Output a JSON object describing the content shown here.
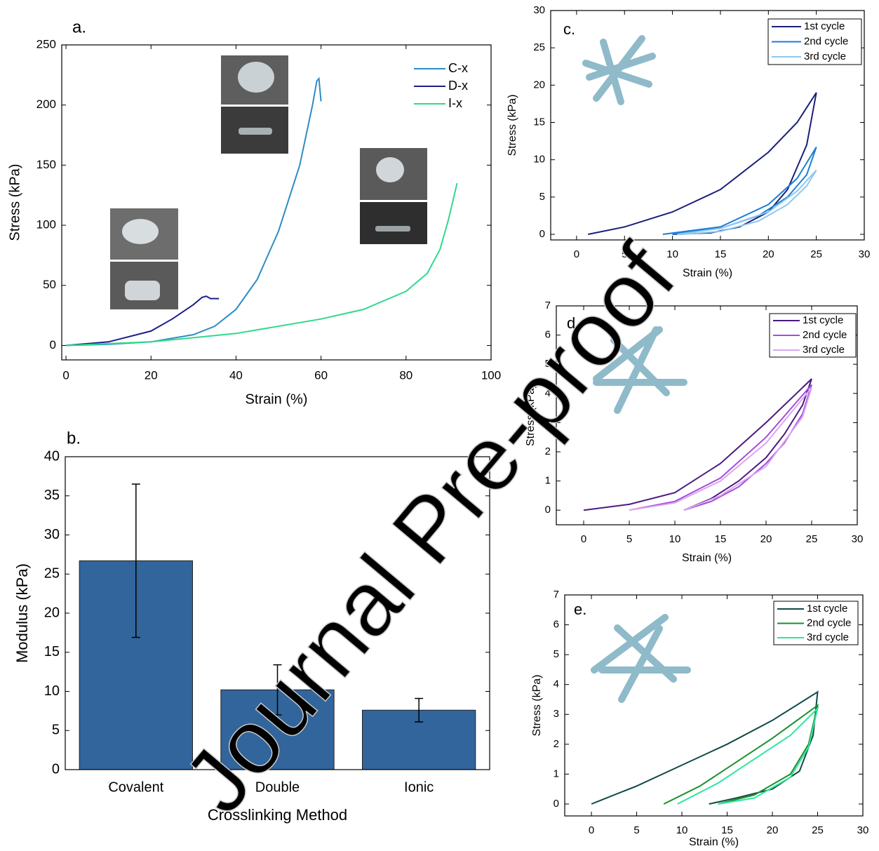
{
  "watermark": "Journal Pre-proof",
  "chart_data": [
    {
      "type": "line",
      "panel_label": "a.",
      "x_label": "Strain (%)",
      "y_label": "Stress (kPa)",
      "xlim": [
        -1,
        100
      ],
      "ylim": [
        -12,
        250
      ],
      "xticks": [
        0,
        20,
        40,
        60,
        80,
        100
      ],
      "yticks": [
        0,
        50,
        100,
        150,
        200,
        250
      ],
      "legend": "upper right",
      "legend_box": false,
      "series": [
        {
          "name": "C-x",
          "color": "#2b8cc4",
          "x": [
            0,
            10,
            20,
            30,
            35,
            40,
            45,
            50,
            55,
            58,
            59,
            59.5,
            60
          ],
          "values": [
            0,
            1,
            3,
            9,
            16,
            30,
            55,
            95,
            150,
            200,
            220,
            222,
            203
          ]
        },
        {
          "name": "D-x",
          "color": "#1c1f8c",
          "x": [
            0,
            10,
            20,
            25,
            30,
            32,
            33,
            34,
            36
          ],
          "values": [
            0,
            3,
            12,
            22,
            34,
            40,
            41,
            39,
            39
          ]
        },
        {
          "name": "I-x",
          "color": "#2fd98c",
          "x": [
            0,
            20,
            40,
            60,
            70,
            80,
            85,
            88,
            90,
            91,
            92
          ],
          "values": [
            0,
            3,
            10,
            22,
            30,
            45,
            60,
            80,
            105,
            120,
            135
          ]
        }
      ]
    },
    {
      "type": "bar",
      "panel_label": "b.",
      "x_label": "Crosslinking Method",
      "y_label": "Modulus (kPa)",
      "categories": [
        "Covalent",
        "Double",
        "Ionic"
      ],
      "values": [
        26.7,
        10.2,
        7.6
      ],
      "errors": [
        9.8,
        3.2,
        1.5
      ],
      "color": "#31659b",
      "ylim": [
        0,
        40
      ],
      "yticks": [
        0,
        5,
        10,
        15,
        20,
        25,
        30,
        35,
        40
      ]
    },
    {
      "type": "line",
      "panel_label": "c.",
      "x_label": "Strain (%)",
      "y_label": "Stress (kPa)",
      "xlim": [
        -2.7,
        30
      ],
      "ylim": [
        -0.75,
        30
      ],
      "xticks": [
        0,
        5,
        10,
        15,
        20,
        25,
        30
      ],
      "yticks": [
        0,
        5,
        10,
        15,
        20,
        25,
        30
      ],
      "legend": "upper right",
      "legend_box": true,
      "series": [
        {
          "name": "1st cycle",
          "color": "#1a1f7a",
          "x": [
            1.2,
            5,
            10,
            15,
            20,
            23,
            25,
            24,
            22,
            20,
            17,
            14,
            10
          ],
          "values": [
            0,
            1,
            3,
            6,
            11,
            15,
            19,
            12,
            6,
            3,
            1,
            0.2,
            0
          ]
        },
        {
          "name": "2nd cycle",
          "color": "#1a7fd4",
          "x": [
            9,
            15,
            20,
            23,
            25,
            24,
            22,
            19,
            15,
            10
          ],
          "values": [
            0,
            1,
            4,
            7.5,
            11.7,
            8,
            5,
            2.5,
            0.8,
            0
          ]
        },
        {
          "name": "3rd cycle",
          "color": "#8ec8ef",
          "x": [
            10.5,
            15,
            20,
            23,
            25,
            24,
            22,
            19,
            15,
            11
          ],
          "values": [
            0,
            0.8,
            3,
            5.8,
            8.6,
            6.5,
            4,
            1.8,
            0.4,
            0
          ]
        }
      ]
    },
    {
      "type": "line",
      "panel_label": "d",
      "x_label": "Strain (%)",
      "y_label": "Stress (kPa)",
      "xlim": [
        -3,
        30
      ],
      "ylim": [
        -0.5,
        7
      ],
      "xticks": [
        0,
        5,
        10,
        15,
        20,
        25,
        30
      ],
      "yticks": [
        0,
        1,
        2,
        3,
        4,
        5,
        6,
        7
      ],
      "legend": "upper right",
      "legend_box": true,
      "series": [
        {
          "name": "1st cycle",
          "color": "#4b1a80",
          "x": [
            0,
            5,
            10,
            15,
            20,
            25,
            24,
            22,
            20,
            17,
            14,
            11
          ],
          "values": [
            0,
            0.2,
            0.6,
            1.6,
            3,
            4.5,
            3.6,
            2.6,
            1.8,
            1,
            0.4,
            0
          ]
        },
        {
          "name": "2nd cycle",
          "color": "#a64ddb",
          "x": [
            5,
            10,
            15,
            20,
            25,
            24,
            22,
            20,
            17,
            14,
            11
          ],
          "values": [
            0,
            0.3,
            1.1,
            2.5,
            4.3,
            3.3,
            2.3,
            1.6,
            0.8,
            0.3,
            0
          ]
        },
        {
          "name": "3rd cycle",
          "color": "#d9a6f2",
          "x": [
            5,
            10,
            15,
            20,
            25,
            24,
            20,
            15,
            11
          ],
          "values": [
            0,
            0.25,
            1,
            2.3,
            4.2,
            3.2,
            1.5,
            0.5,
            0
          ]
        }
      ]
    },
    {
      "type": "line",
      "panel_label": "e.",
      "x_label": "Strain (%)",
      "y_label": "Stress (kPa)",
      "xlim": [
        -2.95,
        30
      ],
      "ylim": [
        -0.4,
        7
      ],
      "xticks": [
        0,
        5,
        10,
        15,
        20,
        25,
        30
      ],
      "yticks": [
        0,
        1,
        2,
        3,
        4,
        5,
        6,
        7
      ],
      "legend": "upper right",
      "legend_box": true,
      "series": [
        {
          "name": "1st cycle",
          "color": "#0f4a47",
          "x": [
            0,
            5,
            10,
            15,
            20,
            25,
            24.5,
            23,
            20,
            16,
            13
          ],
          "values": [
            0,
            0.6,
            1.3,
            2,
            2.8,
            3.75,
            2.3,
            1.1,
            0.5,
            0.2,
            0
          ]
        },
        {
          "name": "2nd cycle",
          "color": "#1a8f2a",
          "x": [
            8,
            12,
            16,
            20,
            25,
            24,
            22,
            18,
            14
          ],
          "values": [
            0,
            0.6,
            1.4,
            2.2,
            3.3,
            2,
            1,
            0.3,
            0
          ]
        },
        {
          "name": "3rd cycle",
          "color": "#2ee6a0",
          "x": [
            9.5,
            14,
            18,
            22,
            25,
            24,
            22,
            18,
            14
          ],
          "values": [
            0,
            0.7,
            1.5,
            2.3,
            3.2,
            1.9,
            0.9,
            0.2,
            0
          ]
        }
      ]
    }
  ]
}
